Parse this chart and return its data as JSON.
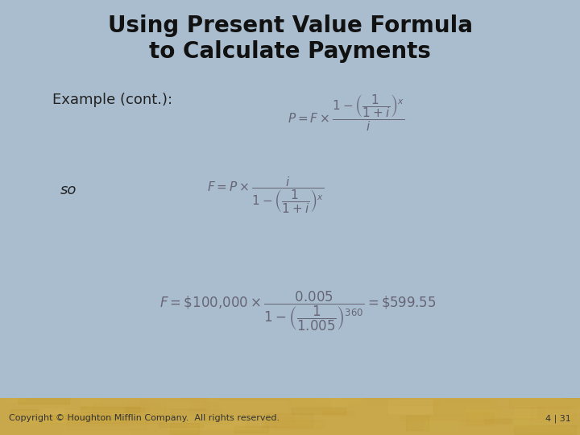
{
  "title_line1": "Using Present Value Formula",
  "title_line2": "to Calculate Payments",
  "title_fontsize": 20,
  "title_color": "#111111",
  "bg_color": "#aabdce",
  "footer_bg": "#c8a84b",
  "footer_text": "Copyright © Houghton Mifflin Company.  All rights reserved.",
  "footer_right": "4 | 31",
  "footer_fontsize": 8,
  "label_example": "Example (cont.):",
  "label_so": "so",
  "label_fontsize": 13,
  "formula_fontsize": 11,
  "formula_color": "#666677",
  "label_color": "#222222"
}
